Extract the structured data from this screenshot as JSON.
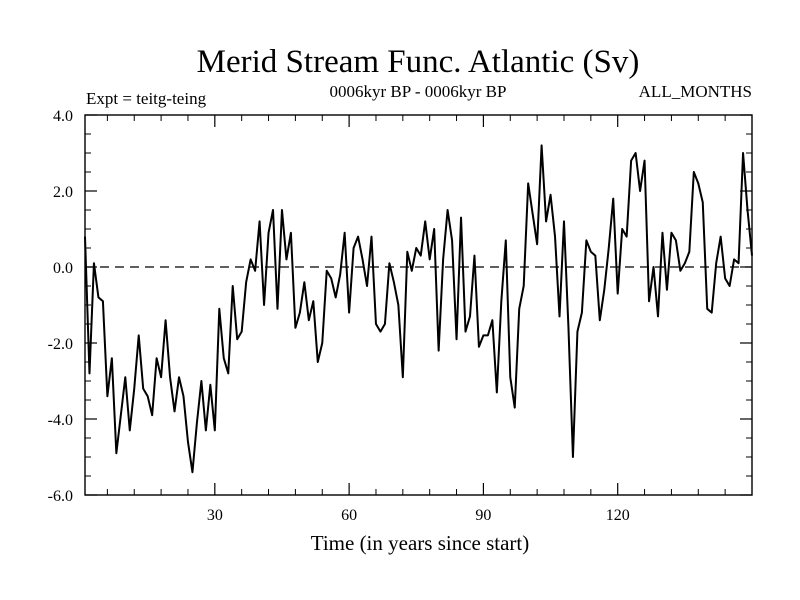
{
  "chart_data": {
    "type": "line",
    "title": "Merid Stream Func. Atlantic (Sv)",
    "subtitle_left": "Expt = teitg-teing",
    "subtitle_center": "0006kyr BP - 0006kyr BP",
    "subtitle_right": "ALL_MONTHS",
    "xlabel": "Time (in years since start)",
    "ylabel": "",
    "xlim": [
      1,
      150
    ],
    "ylim": [
      -6.0,
      4.0
    ],
    "x_ticks": [
      30,
      60,
      90,
      120
    ],
    "x_tick_labels": [
      "30",
      "60",
      "90",
      "120"
    ],
    "y_ticks": [
      -6.0,
      -4.0,
      -2.0,
      0.0,
      2.0,
      4.0
    ],
    "y_tick_labels": [
      "-6.0",
      "-4.0",
      "-2.0",
      "0.0",
      "2.0",
      "4.0"
    ],
    "reference_line": 0.0,
    "grid": false,
    "series": [
      {
        "name": "Merid Stream Func. Atlantic",
        "x_start": 1,
        "x_step": 1,
        "values": [
          0.8,
          -2.8,
          0.1,
          -0.8,
          -0.9,
          -3.4,
          -2.4,
          -4.9,
          -3.9,
          -2.9,
          -4.3,
          -3.2,
          -1.8,
          -3.2,
          -3.4,
          -3.9,
          -2.4,
          -2.9,
          -1.4,
          -2.9,
          -3.8,
          -2.9,
          -3.4,
          -4.6,
          -5.4,
          -4.1,
          -3.0,
          -4.3,
          -3.1,
          -4.3,
          -1.1,
          -2.4,
          -2.8,
          -0.5,
          -1.9,
          -1.7,
          -0.4,
          0.2,
          -0.1,
          1.2,
          -1.0,
          0.9,
          1.5,
          -1.1,
          1.5,
          0.2,
          0.9,
          -1.6,
          -1.2,
          -0.4,
          -1.4,
          -0.9,
          -2.5,
          -2.0,
          -0.1,
          -0.3,
          -0.8,
          -0.2,
          0.9,
          -1.2,
          0.5,
          0.8,
          0.2,
          -0.5,
          0.8,
          -1.5,
          -1.7,
          -1.5,
          0.1,
          -0.4,
          -1.0,
          -2.9,
          0.4,
          -0.1,
          0.5,
          0.3,
          1.2,
          0.2,
          1.0,
          -2.2,
          0.2,
          1.5,
          0.7,
          -1.9,
          1.3,
          -1.7,
          -1.3,
          0.3,
          -2.1,
          -1.8,
          -1.8,
          -1.4,
          -3.3,
          -0.9,
          0.7,
          -2.9,
          -3.7,
          -1.1,
          -0.5,
          2.2,
          1.4,
          0.6,
          3.2,
          1.2,
          1.9,
          0.8,
          -1.3,
          1.2,
          -1.6,
          -5.0,
          -1.7,
          -1.2,
          0.7,
          0.4,
          0.3,
          -1.4,
          -0.6,
          0.5,
          1.8,
          -0.7,
          1.0,
          0.8,
          2.8,
          3.0,
          2.0,
          2.8,
          -0.9,
          0.0,
          -1.3,
          0.9,
          -0.6,
          0.9,
          0.7,
          -0.1,
          0.1,
          0.4,
          2.5,
          2.2,
          1.7,
          -1.1,
          -1.2,
          0.1,
          0.8,
          -0.3,
          -0.5,
          0.2,
          0.1,
          3.0,
          1.5,
          0.3
        ]
      }
    ]
  }
}
